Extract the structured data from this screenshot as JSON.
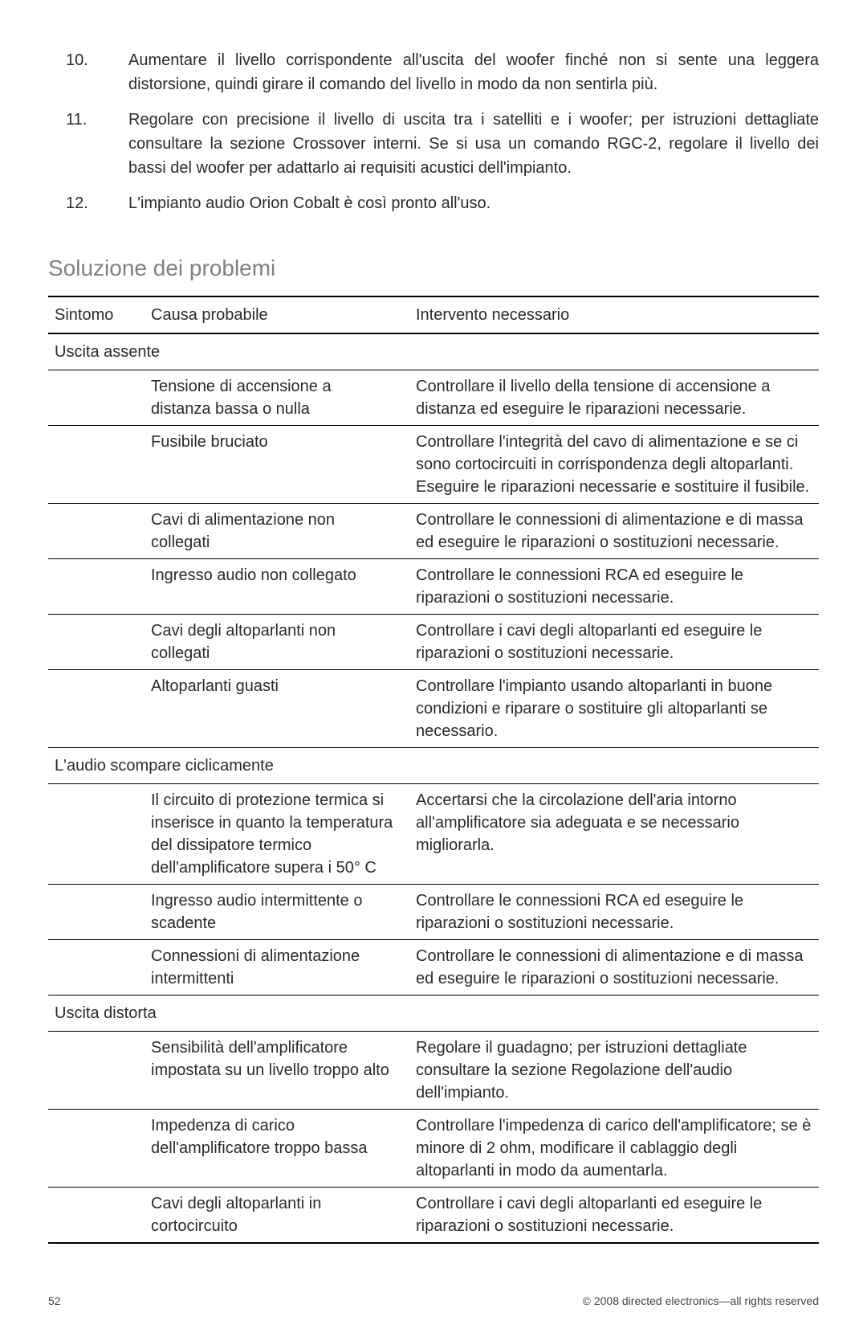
{
  "list": {
    "items": [
      {
        "num": "10.",
        "text": "Aumentare il livello corrispondente all'uscita del woofer finché non si sente una leggera distorsione, quindi girare il comando del livello in modo da non sentirla più."
      },
      {
        "num": "11.",
        "text": "Regolare con precisione il livello di uscita tra i satelliti e i woofer; per istruzioni dettagliate consultare la sezione Crossover interni. Se si usa un comando RGC-2, regolare il livello dei bassi del woofer per adattarlo ai requisiti acustici dell'impianto."
      },
      {
        "num": "12.",
        "text": "L'impianto audio Orion Cobalt è così pronto all'uso."
      }
    ]
  },
  "heading": "Soluzione dei problemi",
  "table": {
    "headers": {
      "symptom": "Sintomo",
      "cause": "Causa probabile",
      "action": "Intervento necessario"
    },
    "groups": [
      {
        "symptom": "Uscita assente",
        "rows": [
          {
            "cause": "Tensione di accensione a distanza bassa o nulla",
            "action": "Controllare il livello della tensione di accensione a distanza ed eseguire le riparazioni necessarie."
          },
          {
            "cause": "Fusibile bruciato",
            "action": "Controllare l'integrità del cavo di alimentazione e se ci sono cortocircuiti in corrispondenza degli altoparlanti. Eseguire le riparazioni necessarie e sostituire il fusibile."
          },
          {
            "cause": "Cavi di alimentazione non collegati",
            "action": "Controllare le connessioni di alimentazione e di massa ed eseguire le riparazioni o sostituzioni necessarie."
          },
          {
            "cause": "Ingresso audio non collegato",
            "action": "Controllare le connessioni RCA ed eseguire le riparazioni o sostituzioni necessarie."
          },
          {
            "cause": "Cavi degli altoparlanti non collegati",
            "action": "Controllare i cavi degli altoparlanti ed eseguire le riparazioni o sostituzioni necessarie."
          },
          {
            "cause": "Altoparlanti guasti",
            "action": "Controllare l'impianto usando altoparlanti in buone condizioni e riparare o sostituire gli altoparlanti se necessario."
          }
        ]
      },
      {
        "symptom": "L'audio scompare ciclicamente",
        "rows": [
          {
            "cause": "Il circuito di protezione termica si inserisce in quanto la temperatura del dissipatore termico dell'amplificatore supera i 50° C",
            "action": "Accertarsi che la circolazione dell'aria intorno all'amplificatore sia adeguata e se necessario migliorarla."
          },
          {
            "cause": "Ingresso audio intermittente o scadente",
            "action": "Controllare le connessioni RCA ed eseguire le riparazioni o sostituzioni necessarie."
          },
          {
            "cause": "Connessioni di alimentazione intermittenti",
            "action": "Controllare le connessioni di alimentazione e di massa ed eseguire le riparazioni o sostituzioni necessarie."
          }
        ]
      },
      {
        "symptom": "Uscita distorta",
        "rows": [
          {
            "cause": "Sensibilità dell'amplificatore impostata su un livello troppo alto",
            "action": "Regolare il guadagno; per istruzioni dettagliate consultare la sezione Regolazione dell'audio dell'impianto."
          },
          {
            "cause": "Impedenza di carico dell'amplificatore troppo bassa",
            "action": "Controllare l'impedenza di carico dell'amplificatore; se è minore di 2 ohm, modificare il cablaggio degli altoparlanti in modo da aumentarla."
          },
          {
            "cause": "Cavi degli altoparlanti in cortocircuito",
            "action": "Controllare i cavi degli altoparlanti ed eseguire le riparazioni o sostituzioni necessarie."
          }
        ]
      }
    ]
  },
  "footer": {
    "page": "52",
    "copyright": "© 2008 directed electronics—all rights reserved"
  }
}
